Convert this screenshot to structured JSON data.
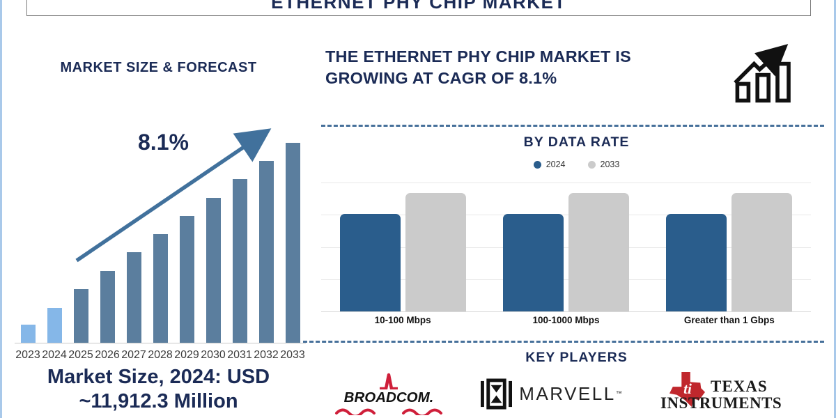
{
  "frame": {
    "title": "ETHERNET PHY CHIP MARKET"
  },
  "left_panel": {
    "heading": "MARKET SIZE & FORECAST",
    "growth_label": "8.1%",
    "footer_line1": "Market Size, 2024: USD",
    "footer_line2": "~11,912.3 Million"
  },
  "right_panel": {
    "headline_line1": "THE ETHERNET PHY CHIP MARKET IS",
    "headline_line2": "GROWING AT CAGR OF 8.1%",
    "section_data_rate_heading": "BY DATA RATE",
    "section_players_heading": "KEY PLAYERS"
  },
  "logos": {
    "broadcom_text": "BROADCOM.",
    "marvell_text": "MARVELL",
    "marvell_tm": "™",
    "ti_mark": "ti",
    "ti_line1": "TEXAS",
    "ti_line2": "INSTRUMENTS"
  },
  "chart_data": [
    {
      "type": "bar",
      "title": "MARKET SIZE & FORECAST",
      "categories": [
        "2023",
        "2024",
        "2025",
        "2026",
        "2027",
        "2028",
        "2029",
        "2030",
        "2031",
        "2032",
        "2033"
      ],
      "values_relative": [
        26,
        50,
        77,
        103,
        130,
        156,
        182,
        208,
        235,
        261,
        287
      ],
      "unit": "relative bar height in px; no y-axis shown, linear growth depiction",
      "bar_colors": [
        "#85b7e8",
        "#85b7e8",
        "#5b7e9e",
        "#5b7e9e",
        "#5b7e9e",
        "#5b7e9e",
        "#5b7e9e",
        "#5b7e9e",
        "#5b7e9e",
        "#5b7e9e",
        "#5b7e9e"
      ],
      "annotation": "8.1%",
      "caption": "Market Size, 2024: USD ~11,912.3 Million",
      "grid": false,
      "yaxis_visible": false
    },
    {
      "type": "bar",
      "title": "BY DATA RATE",
      "categories": [
        "10-100 Mbps",
        "100-1000 Mbps",
        "Greater than 1 Gbps"
      ],
      "series": [
        {
          "name": "2024",
          "color": "#2a5d8c",
          "values_relative": [
            140,
            140,
            140
          ]
        },
        {
          "name": "2033",
          "color": "#cbcbcb",
          "values_relative": [
            170,
            170,
            170
          ]
        }
      ],
      "unit": "relative bar height in px; no y-axis shown",
      "legend_position": "top",
      "grid": true
    }
  ],
  "colors": {
    "navy_text": "#1b2b56",
    "steel_blue_bar": "#5b7e9e",
    "light_blue_bar": "#85b7e8",
    "arrow_blue": "#41719c",
    "bar_2024": "#2a5d8c",
    "bar_2033": "#cbcbcb",
    "dashed_divider": "#46709a",
    "frame_border": "#a9c9ea",
    "broadcom_red": "#cf1f3a",
    "ti_red": "#c0272d",
    "axis_gray": "#c9c9c9"
  }
}
